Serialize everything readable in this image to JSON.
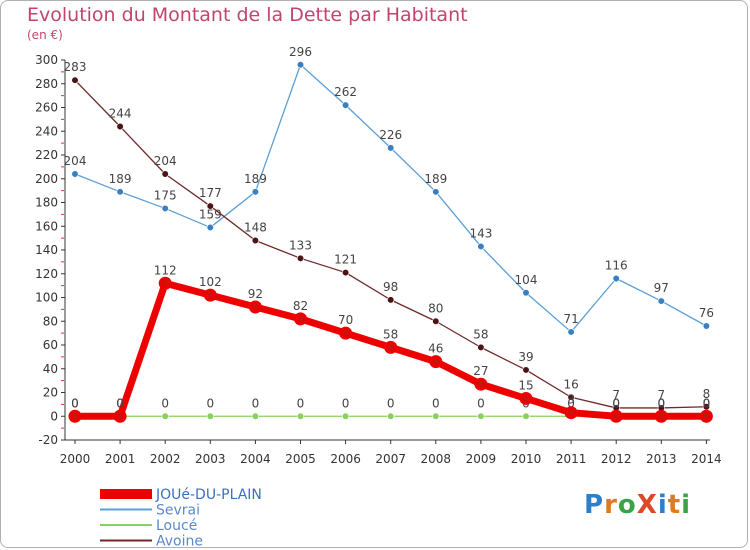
{
  "title": "Evolution du Montant de la Dette par Habitant",
  "unit": "(en €)",
  "logo": {
    "text": "ProXiti",
    "colors": [
      "#2f7fc8",
      "#e07a1f",
      "#3aa546",
      "#d94a2a",
      "#2f7fc8",
      "#e07a1f",
      "#3aa546"
    ]
  },
  "chart_data": {
    "type": "line",
    "title": "Evolution du Montant de la Dette par Habitant",
    "ylabel": "(en €)",
    "xlabel": "",
    "ylim": [
      -20,
      300
    ],
    "yticks": [
      -20,
      0,
      20,
      40,
      60,
      80,
      100,
      120,
      140,
      160,
      180,
      200,
      220,
      240,
      260,
      280,
      300
    ],
    "x": [
      "2000",
      "2001",
      "2002",
      "2003",
      "2004",
      "2005",
      "2006",
      "2007",
      "2008",
      "2009",
      "2010",
      "2011",
      "2012",
      "2013",
      "2014"
    ],
    "grid": false,
    "legend_position": "bottom-left",
    "series": [
      {
        "name": "Sevrai",
        "color": "#5b9fd6",
        "width": 1.3,
        "marker": "#3a7fc1",
        "labels": true,
        "values": [
          204,
          189,
          175,
          159,
          189,
          296,
          262,
          226,
          189,
          143,
          104,
          71,
          116,
          97,
          76
        ]
      },
      {
        "name": "Avoine",
        "color": "#6e2a2a",
        "width": 1.3,
        "marker": "#4a1414",
        "labels": true,
        "values": [
          283,
          244,
          204,
          177,
          148,
          133,
          121,
          98,
          80,
          58,
          39,
          16,
          7,
          7,
          8
        ]
      },
      {
        "name": "Loucé",
        "color": "#88d15a",
        "width": 1.3,
        "marker": "#88d15a",
        "labels": true,
        "values": [
          0,
          0,
          0,
          0,
          0,
          0,
          0,
          0,
          0,
          0,
          0,
          0,
          0,
          0,
          0
        ]
      },
      {
        "name": "JOUé-DU-PLAIN",
        "color": "#ee0000",
        "width": 7,
        "marker": "#ee0000",
        "labels": true,
        "values": [
          0,
          0,
          112,
          102,
          92,
          82,
          70,
          58,
          46,
          27,
          15,
          3,
          0,
          0,
          0
        ]
      }
    ],
    "legend_order": [
      "JOUé-DU-PLAIN",
      "Sevrai",
      "Loucé",
      "Avoine"
    ]
  }
}
